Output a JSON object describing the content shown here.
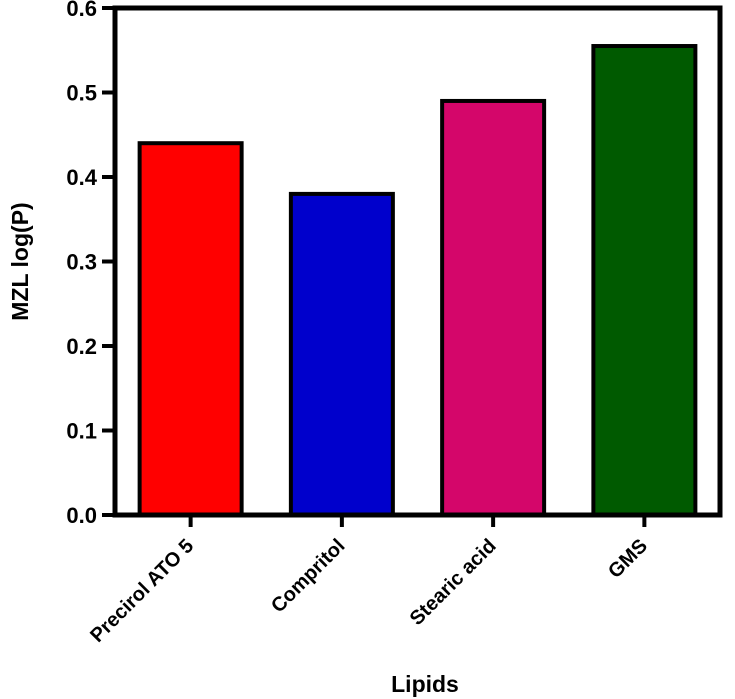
{
  "chart_data": {
    "type": "bar",
    "title": "",
    "xlabel": "Lipids",
    "ylabel": "MZL log(P)",
    "categories": [
      "Precirol ATO 5",
      "Compritol",
      "Stearic acid",
      "GMS"
    ],
    "values": [
      0.44,
      0.38,
      0.49,
      0.555
    ],
    "colors": [
      "#ff0000",
      "#0000cc",
      "#d4066a",
      "#005a00"
    ],
    "ylim": [
      0,
      0.6
    ],
    "yticks": [
      "0.0",
      "0.1",
      "0.2",
      "0.3",
      "0.4",
      "0.5",
      "0.6"
    ],
    "grid": false,
    "legend": "none"
  }
}
